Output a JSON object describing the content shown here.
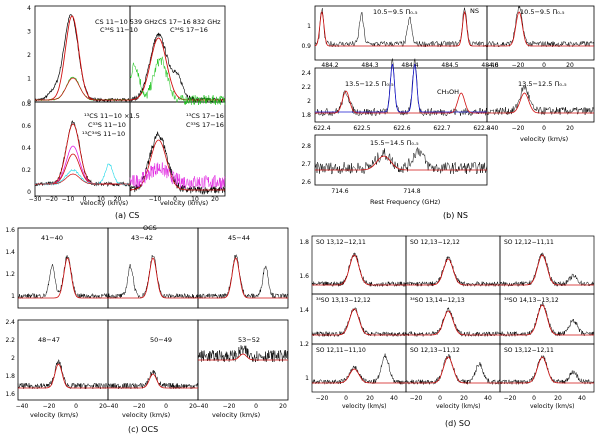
{
  "figure": {
    "captions": {
      "a": "(a) CS",
      "b": "(b) NS",
      "c": "(c) OCS",
      "d": "(d) SO"
    },
    "axis_label_velocity": "velocity (km/s)",
    "axis_label_rest_freq": "Rest Frequency (GHz)"
  },
  "panel_a": {
    "y_ticks_top": [
      "4",
      "3",
      "2",
      "1",
      "0"
    ],
    "y_ticks_bottom": [
      "0.8",
      "0.6",
      "0.4",
      "0.2",
      "0"
    ],
    "x_ticks": [
      "−30",
      "−20",
      "−10",
      "0",
      "10",
      "20"
    ],
    "x_ticks_right": [
      "−10",
      "0",
      "10",
      "20"
    ],
    "labels": {
      "tl1": "CS 11−10 539 GHz",
      "tl2": "C³⁴S 11−10",
      "tr1": "CS 17−16 832 GHz",
      "tr2": "C³⁴S 17−16",
      "bl1": "¹³CS 11−10 ×1.5",
      "bl2": "C³³S 11−10",
      "bl3": "¹³C³⁴S 11−10",
      "br1": "¹³CS 17−16",
      "br2": "C³³S 17−16"
    },
    "colors": {
      "black": "#000000",
      "red": "#d01010",
      "green": "#10c010",
      "magenta": "#e020e0",
      "cyan": "#20d8e8"
    }
  },
  "panel_b": {
    "labels": {
      "ns": "NS",
      "r1l": "10.5−9.5 Π₀.₅",
      "r1r": "10.5−9.5 Π₀.₅",
      "r2l": "13.5−12.5 Π₀.₅",
      "ch3oh": "CH₃OH",
      "r2r": "13.5−12.5 Π₀.₅",
      "r3": "15.5−14.5 Π₀.₅"
    },
    "y_ticks_r1": [
      "1",
      "0.9"
    ],
    "y_ticks_r2": [
      "2.4",
      "2.2",
      "2",
      "1.8"
    ],
    "y_ticks_r3": [
      "2.8",
      "2.7",
      "2.6"
    ],
    "freq_ticks_r1": [
      "484.2",
      "484.3",
      "484.4",
      "484.5",
      "484.6"
    ],
    "freq_ticks_r2": [
      "622.4",
      "622.5",
      "622.6",
      "622.7",
      "622.8"
    ],
    "freq_ticks_r3": [
      "714.6",
      "714.8"
    ],
    "vel_ticks": [
      "−40",
      "−20",
      "0",
      "20"
    ]
  },
  "panel_c": {
    "title": "OCS",
    "labels": [
      "41−40",
      "43−42",
      "45−44",
      "48−47",
      "50−49",
      "53−52"
    ],
    "y_ticks_top": [
      "1.6",
      "1.4",
      "1.2",
      "1"
    ],
    "y_ticks_bottom": [
      "2.4",
      "2.2",
      "2",
      "1.8",
      "1.6"
    ],
    "x_ticks": [
      "−40",
      "−20",
      "0",
      "20"
    ]
  },
  "panel_d": {
    "labels": [
      "SO 13,12−12,11",
      "SO 12,13−12,12",
      "SO 12,12−11,11",
      "³⁴SO 13,13−12,12",
      "³⁴SO 13,14−12,13",
      "³⁴SO 14,13−13,12",
      "SO 12,11−11,10",
      "SO 12,13−11,12",
      "SO 13,12−12,11"
    ],
    "y_ticks": [
      "1.8",
      "1.6",
      "1.4",
      "1.2",
      "1"
    ],
    "x_ticks": [
      "−20",
      "0",
      "20",
      "40"
    ]
  }
}
